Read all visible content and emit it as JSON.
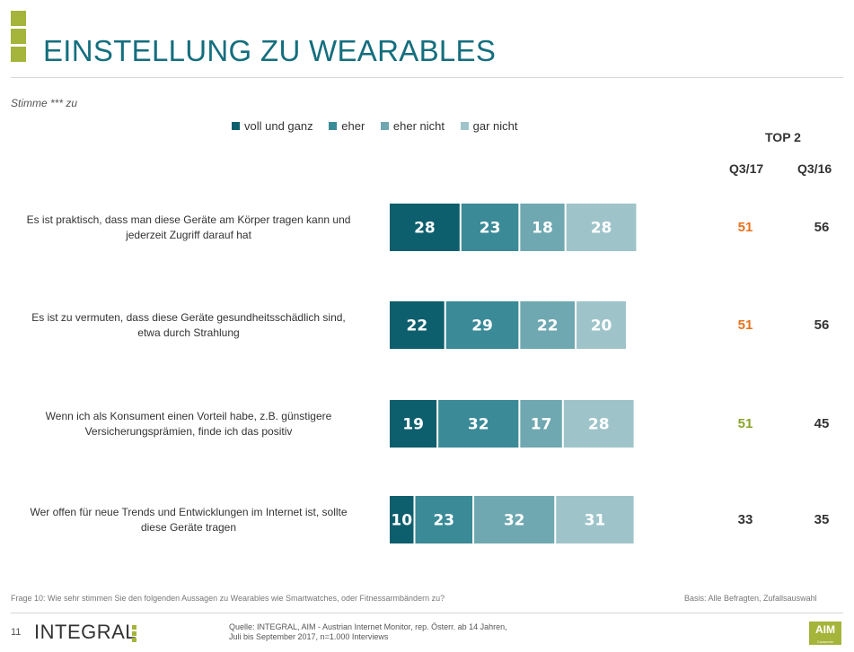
{
  "header": {
    "title": "EINSTELLUNG ZU WEARABLES",
    "subtitle": "Stimme *** zu"
  },
  "colors": {
    "accent": "#a5b43a",
    "title": "#146e7e",
    "series": [
      "#0e5f6e",
      "#3a8a97",
      "#6fa8b1",
      "#9ec4ca"
    ],
    "top2": {
      "orange": "#e8731f",
      "green": "#8aa32c",
      "dark": "#333333"
    }
  },
  "top2": {
    "label": "TOP 2",
    "col1": "Q3/17",
    "col2": "Q3/16"
  },
  "chart_data": {
    "type": "bar",
    "orientation": "horizontal",
    "stacked": true,
    "legend_position": "top",
    "grid": false,
    "categories": [
      "Es ist praktisch, dass man diese Geräte am Körper tragen kann und jederzeit Zugriff darauf hat",
      "Es ist zu vermuten, dass diese Geräte gesundheitsschädlich sind, etwa durch Strahlung",
      "Wenn ich als Konsument einen Vorteil habe, z.B. günstigere Versicherungsprämien, finde ich das positiv",
      "Wer offen für neue Trends und Entwicklungen im Internet ist, sollte diese Geräte tragen"
    ],
    "category_lines": [
      [
        "Es ist praktisch, dass man diese Geräte am Körper tragen kann und",
        "jederzeit Zugriff darauf hat"
      ],
      [
        "Es ist zu vermuten, dass diese Geräte gesundheitsschädlich sind,",
        "etwa durch Strahlung"
      ],
      [
        "Wenn ich als Konsument einen Vorteil habe, z.B. günstigere",
        "Versicherungsprämien, finde ich das positiv"
      ],
      [
        "Wer offen für neue Trends und Entwicklungen im Internet ist, sollte",
        "diese Geräte tragen"
      ]
    ],
    "series": [
      {
        "name": "voll und ganz",
        "values": [
          28,
          22,
          19,
          10
        ]
      },
      {
        "name": "eher",
        "values": [
          23,
          29,
          32,
          23
        ]
      },
      {
        "name": "eher nicht",
        "values": [
          18,
          22,
          17,
          32
        ]
      },
      {
        "name": "gar nicht",
        "values": [
          28,
          20,
          28,
          31
        ]
      }
    ],
    "top2": {
      "q3_17": [
        51,
        51,
        51,
        33
      ],
      "q3_17_colors": [
        "orange",
        "orange",
        "green",
        "dark"
      ],
      "q3_16": [
        56,
        56,
        45,
        35
      ]
    }
  },
  "footer": {
    "question": "Frage 10: Wie sehr stimmen Sie den folgenden Aussagen zu Wearables wie Smartwatches, oder Fitnessarmbändern zu?",
    "basis": "Basis: Alle Befragten, Zufallsauswahl",
    "page": "11",
    "brand": "INTEGRAL",
    "source_line1": "Quelle: INTEGRAL, AIM - Austrian Internet Monitor, rep. Österr. ab 14 Jahren,",
    "source_line2": "Juli bis September 2017, n=1.000 Interviews",
    "aim": "AIM",
    "aim_sub": "Consumer"
  }
}
